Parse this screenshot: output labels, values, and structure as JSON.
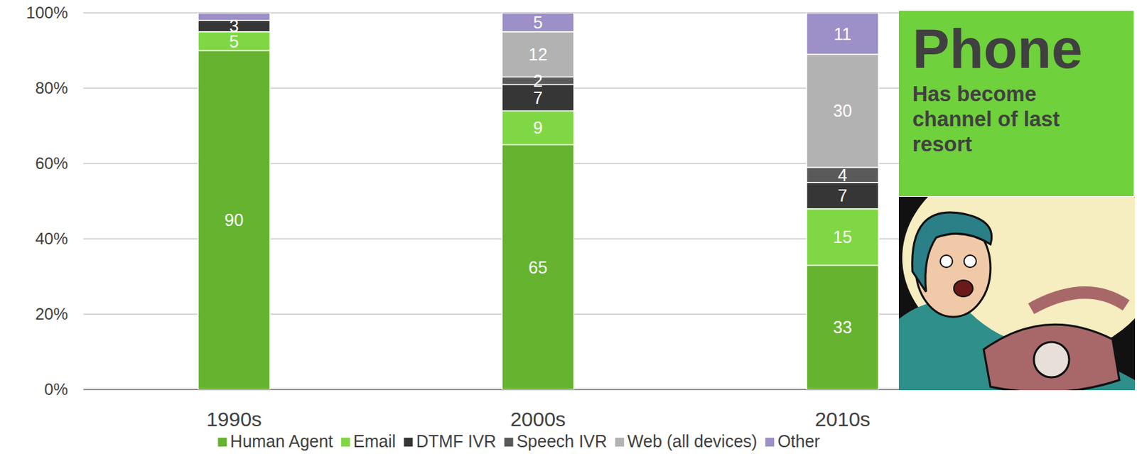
{
  "chart_data": {
    "type": "bar",
    "stacked": true,
    "data_labels": true,
    "grid": true,
    "legend": "bottom",
    "categories": [
      "1990s",
      "2000s",
      "2010s"
    ],
    "ylim": [
      0,
      100
    ],
    "yticks": [
      {
        "value": 0,
        "label": "0%"
      },
      {
        "value": 20,
        "label": "20%"
      },
      {
        "value": 40,
        "label": "40%"
      },
      {
        "value": 60,
        "label": "60%"
      },
      {
        "value": 80,
        "label": "80%"
      },
      {
        "value": 100,
        "label": "100%"
      }
    ],
    "series": [
      {
        "name": "Human Agent",
        "color": "#65b32e",
        "values": [
          90,
          65,
          33
        ]
      },
      {
        "name": "Email",
        "color": "#7fd843",
        "values": [
          5,
          9,
          15
        ]
      },
      {
        "name": "DTMF IVR",
        "color": "#363636",
        "values": [
          3,
          7,
          7
        ]
      },
      {
        "name": "Speech IVR",
        "color": "#5a5a5a",
        "values": [
          0,
          2,
          4
        ]
      },
      {
        "name": "Web (all devices)",
        "color": "#b2b2b2",
        "values": [
          0,
          12,
          30
        ]
      },
      {
        "name": "Other",
        "color": "#9d8fc7",
        "values": [
          2,
          5,
          11
        ],
        "value_labels": [
          null,
          "5",
          "11"
        ]
      }
    ],
    "annotation": {
      "title": "Phone",
      "text": "Has become channel of last resort"
    }
  }
}
